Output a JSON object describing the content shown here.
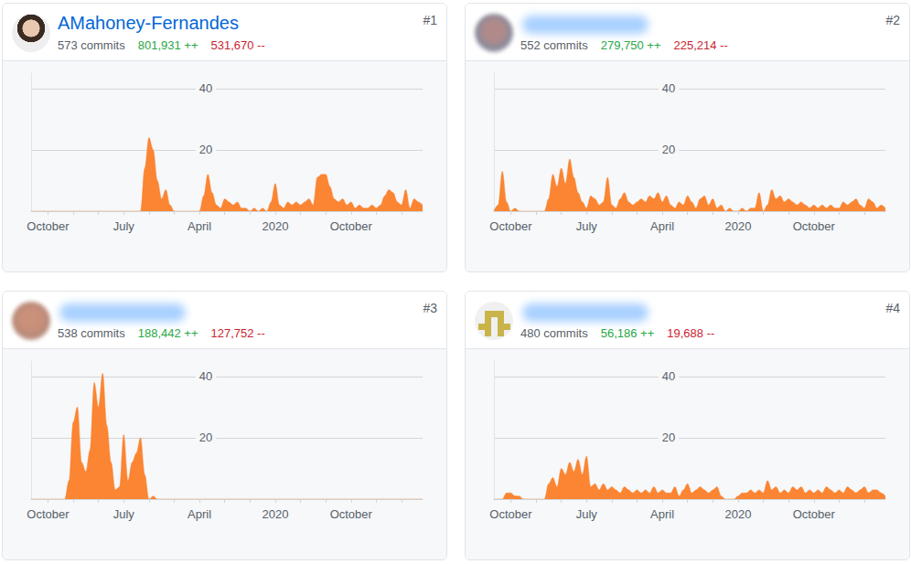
{
  "chart_data": [
    {
      "type": "area",
      "rank": "#1",
      "title": "AMahoney-Fernandes",
      "commits": "573 commits",
      "additions": "801,931 ++",
      "deletions": "531,670 --",
      "categories": [
        null,
        null,
        null,
        null,
        "October",
        null,
        null,
        null,
        null,
        null,
        null,
        null,
        null,
        null,
        null,
        null,
        null,
        null,
        null,
        null,
        null,
        null,
        "July",
        null,
        null,
        null,
        null,
        null,
        null,
        null,
        null,
        null,
        null,
        null,
        null,
        null,
        null,
        null,
        null,
        null,
        "April",
        null,
        null,
        null,
        null,
        null,
        null,
        null,
        null,
        null,
        null,
        null,
        null,
        null,
        null,
        null,
        null,
        null,
        "2020",
        null,
        null,
        null,
        null,
        null,
        null,
        null,
        null,
        null,
        null,
        null,
        null,
        null,
        null,
        null,
        null,
        null,
        "October",
        null,
        null,
        null,
        null,
        null,
        null,
        null,
        null,
        null,
        null,
        null,
        null,
        null,
        null,
        null,
        null,
        null
      ],
      "values": [
        0,
        0,
        0,
        0,
        0,
        0,
        0,
        0,
        0,
        0,
        0,
        0,
        0,
        0,
        0,
        0,
        0,
        0,
        0,
        0,
        0,
        0,
        0,
        0,
        0,
        0,
        0,
        14,
        24,
        20,
        10,
        4,
        7,
        2,
        0,
        0,
        0,
        0,
        0,
        0,
        0,
        5,
        12,
        6,
        2,
        1,
        4,
        3,
        2,
        3,
        1,
        1,
        0,
        1,
        0,
        1,
        0,
        3,
        9,
        2,
        1,
        3,
        2,
        3,
        2,
        3,
        4,
        2,
        11,
        12,
        12,
        8,
        4,
        3,
        4,
        2,
        3,
        1,
        2,
        1,
        1,
        2,
        1,
        2,
        5,
        7,
        6,
        3,
        2,
        7,
        1,
        4,
        3,
        2
      ],
      "color": "#fb8532",
      "ylim": [
        0,
        45
      ],
      "yticks": [
        20,
        40
      ],
      "grid": true
    },
    {
      "type": "area",
      "rank": "#2",
      "commits": "552 commits",
      "additions": "279,750 ++",
      "deletions": "225,214 --",
      "categories": [
        null,
        null,
        null,
        null,
        "October",
        null,
        null,
        null,
        null,
        null,
        null,
        null,
        null,
        null,
        null,
        null,
        null,
        null,
        null,
        null,
        null,
        null,
        "July",
        null,
        null,
        null,
        null,
        null,
        null,
        null,
        null,
        null,
        null,
        null,
        null,
        null,
        null,
        null,
        null,
        null,
        "April",
        null,
        null,
        null,
        null,
        null,
        null,
        null,
        null,
        null,
        null,
        null,
        null,
        null,
        null,
        null,
        null,
        null,
        "2020",
        null,
        null,
        null,
        null,
        null,
        null,
        null,
        null,
        null,
        null,
        null,
        null,
        null,
        null,
        null,
        null,
        null,
        "October",
        null,
        null,
        null,
        null,
        null,
        null,
        null,
        null,
        null,
        null,
        null,
        null,
        null,
        null,
        null,
        null,
        null
      ],
      "values": [
        0,
        2,
        13,
        3,
        0,
        1,
        0,
        0,
        0,
        0,
        0,
        0,
        0,
        4,
        12,
        8,
        14,
        9,
        17,
        11,
        6,
        3,
        1,
        5,
        4,
        2,
        3,
        11,
        2,
        1,
        4,
        6,
        3,
        2,
        3,
        4,
        3,
        5,
        4,
        6,
        3,
        5,
        2,
        1,
        3,
        2,
        5,
        3,
        1,
        4,
        5,
        2,
        4,
        1,
        2,
        0,
        1,
        0,
        0,
        1,
        0,
        1,
        1,
        6,
        0,
        2,
        7,
        4,
        5,
        3,
        4,
        3,
        2,
        3,
        2,
        1,
        2,
        1,
        2,
        1,
        2,
        1,
        1,
        3,
        2,
        3,
        4,
        2,
        1,
        4,
        3,
        1,
        2,
        1
      ],
      "color": "#fb8532",
      "ylim": [
        0,
        45
      ],
      "yticks": [
        20,
        40
      ],
      "grid": true
    },
    {
      "type": "area",
      "rank": "#3",
      "commits": "538 commits",
      "additions": "188,442 ++",
      "deletions": "127,752 --",
      "categories": [
        null,
        null,
        null,
        null,
        "October",
        null,
        null,
        null,
        null,
        null,
        null,
        null,
        null,
        null,
        null,
        null,
        null,
        null,
        null,
        null,
        null,
        null,
        "July",
        null,
        null,
        null,
        null,
        null,
        null,
        null,
        null,
        null,
        null,
        null,
        null,
        null,
        null,
        null,
        null,
        null,
        "April",
        null,
        null,
        null,
        null,
        null,
        null,
        null,
        null,
        null,
        null,
        null,
        null,
        null,
        null,
        null,
        null,
        null,
        "2020",
        null,
        null,
        null,
        null,
        null,
        null,
        null,
        null,
        null,
        null,
        null,
        null,
        null,
        null,
        null,
        null,
        null,
        "October",
        null,
        null,
        null,
        null,
        null,
        null,
        null,
        null,
        null,
        null,
        null,
        null,
        null,
        null,
        null,
        null,
        null
      ],
      "values": [
        0,
        0,
        0,
        0,
        0,
        0,
        0,
        0,
        0,
        6,
        25,
        30,
        12,
        9,
        16,
        38,
        30,
        41,
        24,
        12,
        3,
        4,
        21,
        6,
        12,
        15,
        20,
        8,
        0,
        1,
        0,
        0,
        0,
        0,
        0,
        0,
        0,
        0,
        0,
        0,
        0,
        0,
        0,
        0,
        0,
        0,
        0,
        0,
        0,
        0,
        0,
        0,
        0,
        0,
        0,
        0,
        0,
        0,
        0,
        0,
        0,
        0,
        0,
        0,
        0,
        0,
        0,
        0,
        0,
        0,
        0,
        0,
        0,
        0,
        0,
        0,
        0,
        0,
        0,
        0,
        0,
        0,
        0,
        0,
        0,
        0,
        0,
        0,
        0,
        0,
        0,
        0,
        0,
        0
      ],
      "color": "#fb8532",
      "ylim": [
        0,
        45
      ],
      "yticks": [
        20,
        40
      ],
      "grid": true
    },
    {
      "type": "area",
      "rank": "#4",
      "commits": "480 commits",
      "additions": "56,186 ++",
      "deletions": "19,688 --",
      "categories": [
        null,
        null,
        null,
        null,
        "October",
        null,
        null,
        null,
        null,
        null,
        null,
        null,
        null,
        null,
        null,
        null,
        null,
        null,
        null,
        null,
        null,
        null,
        "July",
        null,
        null,
        null,
        null,
        null,
        null,
        null,
        null,
        null,
        null,
        null,
        null,
        null,
        null,
        null,
        null,
        null,
        "April",
        null,
        null,
        null,
        null,
        null,
        null,
        null,
        null,
        null,
        null,
        null,
        null,
        null,
        null,
        null,
        null,
        null,
        "2020",
        null,
        null,
        null,
        null,
        null,
        null,
        null,
        null,
        null,
        null,
        null,
        null,
        null,
        null,
        null,
        null,
        null,
        "October",
        null,
        null,
        null,
        null,
        null,
        null,
        null,
        null,
        null,
        null,
        null,
        null,
        null,
        null,
        null,
        null,
        null
      ],
      "values": [
        0,
        0,
        0,
        2,
        2,
        1,
        1,
        0,
        0,
        0,
        0,
        0,
        0,
        5,
        7,
        4,
        10,
        8,
        12,
        9,
        13,
        8,
        14,
        4,
        5,
        3,
        5,
        3,
        4,
        3,
        2,
        4,
        3,
        2,
        3,
        2,
        3,
        2,
        4,
        2,
        3,
        2,
        2,
        4,
        1,
        3,
        5,
        2,
        3,
        4,
        3,
        2,
        3,
        4,
        1,
        0,
        0,
        0,
        1,
        2,
        2,
        3,
        2,
        3,
        2,
        6,
        3,
        4,
        2,
        3,
        2,
        4,
        3,
        4,
        2,
        3,
        2,
        3,
        2,
        4,
        3,
        2,
        3,
        2,
        4,
        3,
        2,
        3,
        4,
        2,
        3,
        3,
        2,
        1
      ],
      "color": "#fb8532",
      "ylim": [
        0,
        45
      ],
      "yticks": [
        20,
        40
      ],
      "grid": true
    }
  ]
}
